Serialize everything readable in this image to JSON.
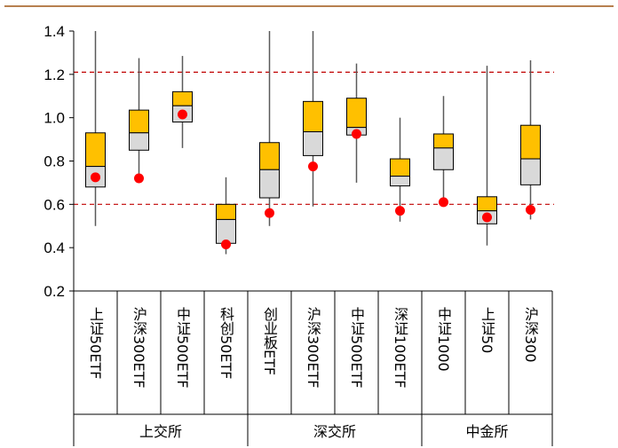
{
  "chart_data": {
    "type": "box",
    "ylim": [
      0.2,
      1.4
    ],
    "yticks": [
      "0.2",
      "0.4",
      "0.6",
      "0.8",
      "1.0",
      "1.2",
      "1.4"
    ],
    "reference_lines": [
      0.6,
      1.21
    ],
    "categories": [
      {
        "name": "上证50ETF",
        "group": "上交所",
        "min": 0.5,
        "q1": 0.68,
        "median": 0.775,
        "q3": 0.93,
        "max": 1.4,
        "current": 0.725
      },
      {
        "name": "沪深300ETF",
        "group": "上交所",
        "min": 0.72,
        "q1": 0.85,
        "median": 0.93,
        "q3": 1.035,
        "max": 1.275,
        "current": 0.72
      },
      {
        "name": "中证500ETF",
        "group": "上交所",
        "min": 0.86,
        "q1": 0.98,
        "median": 1.055,
        "q3": 1.12,
        "max": 1.285,
        "current": 1.015
      },
      {
        "name": "科创50ETF",
        "group": "上交所",
        "min": 0.37,
        "q1": 0.42,
        "median": 0.53,
        "q3": 0.6,
        "max": 0.725,
        "current": 0.415
      },
      {
        "name": "创业板ETF",
        "group": "深交所",
        "min": 0.5,
        "q1": 0.63,
        "median": 0.76,
        "q3": 0.885,
        "max": 1.4,
        "current": 0.56
      },
      {
        "name": "沪深300ETF",
        "group": "深交所",
        "min": 0.59,
        "q1": 0.825,
        "median": 0.935,
        "q3": 1.075,
        "max": 1.4,
        "current": 0.775
      },
      {
        "name": "中证500ETF",
        "group": "深交所",
        "min": 0.7,
        "q1": 0.92,
        "median": 0.955,
        "q3": 1.09,
        "max": 1.25,
        "current": 0.925
      },
      {
        "name": "深证100ETF",
        "group": "深交所",
        "min": 0.52,
        "q1": 0.685,
        "median": 0.73,
        "q3": 0.81,
        "max": 1.0,
        "current": 0.57
      },
      {
        "name": "中证1000",
        "group": "中金所",
        "min": 0.61,
        "q1": 0.76,
        "median": 0.86,
        "q3": 0.925,
        "max": 1.1,
        "current": 0.61
      },
      {
        "name": "上证50",
        "group": "中金所",
        "min": 0.41,
        "q1": 0.51,
        "median": 0.57,
        "q3": 0.635,
        "max": 1.24,
        "current": 0.54
      },
      {
        "name": "沪深300",
        "group": "中金所",
        "min": 0.53,
        "q1": 0.69,
        "median": 0.81,
        "q3": 0.965,
        "max": 1.265,
        "current": 0.575
      }
    ],
    "groups": [
      "上交所",
      "深交所",
      "中金所"
    ],
    "colors": {
      "upper_box": "#FFC000",
      "lower_box": "#D9D9D9",
      "current_dot": "#FF0000",
      "reference_line": "#C00000",
      "whisker": "#595959",
      "top_rule": "#B7804F"
    }
  }
}
